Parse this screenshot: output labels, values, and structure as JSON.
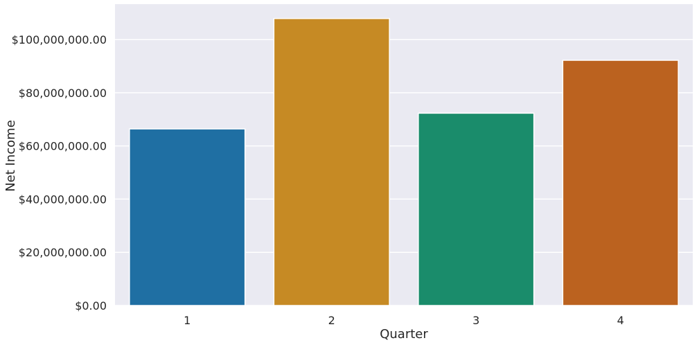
{
  "chart_data": {
    "type": "bar",
    "title": "",
    "xlabel": "Quarter",
    "ylabel": "Net Income",
    "categories": [
      "1",
      "2",
      "3",
      "4"
    ],
    "values": [
      66400000,
      107900000,
      72300000,
      92200000
    ],
    "y_ticks": [
      0,
      20000000,
      40000000,
      60000000,
      80000000,
      100000000
    ],
    "y_tick_labels": [
      "$0.00",
      "$20,000,000.00",
      "$40,000,000.00",
      "$60,000,000.00",
      "$80,000,000.00",
      "$100,000,000.00"
    ],
    "ylim": [
      0,
      113300000
    ],
    "grid": true,
    "legend": "none",
    "colors": [
      "#1f6fa3",
      "#c68a24",
      "#1a8c6b",
      "#bb621f"
    ],
    "background": "#eaeaf2"
  }
}
